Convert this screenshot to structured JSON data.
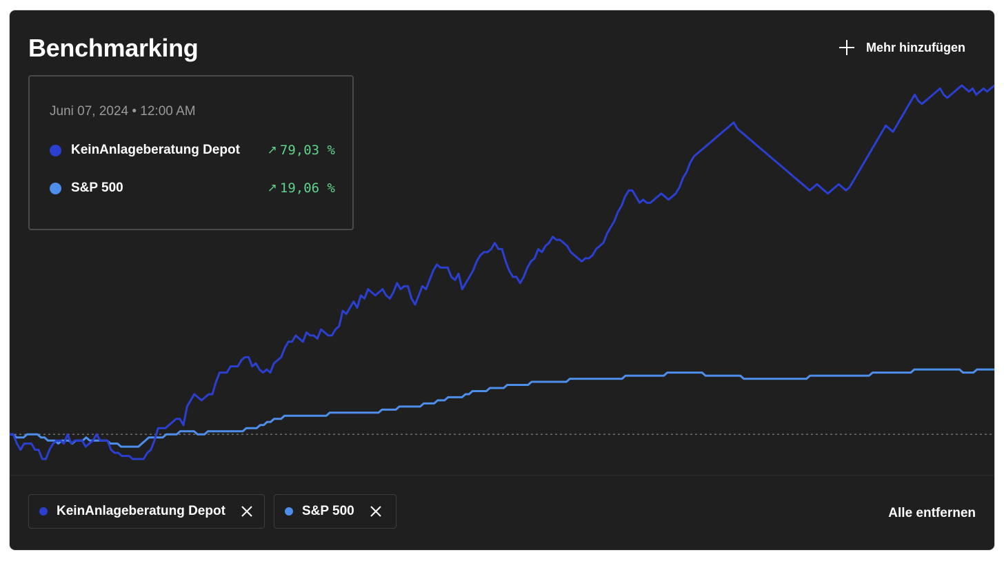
{
  "header": {
    "title": "Benchmarking",
    "add_more_label": "Mehr hinzufügen",
    "add_icon": "plus-icon"
  },
  "tooltip": {
    "date": "Juni 07, 2024 • 12:00 AM",
    "rows": [
      {
        "label": "KeinAnlageberatung Depot",
        "change": "79,03 %",
        "color": "#2b3fd0",
        "icon": "arrow-up-right-icon"
      },
      {
        "label": "S&P 500",
        "change": "19,06 %",
        "color": "#4f8fec",
        "icon": "arrow-up-right-icon"
      }
    ]
  },
  "chips": [
    {
      "label": "KeinAnlageberatung Depot",
      "color": "#2b3fd0",
      "close_icon": "close-icon"
    },
    {
      "label": "S&P 500",
      "color": "#4f8fec",
      "close_icon": "close-icon"
    }
  ],
  "remove_all_label": "Alle entfernen",
  "colors": {
    "background": "#1f1f20",
    "depot": "#2b3fd0",
    "sp500": "#4f8fec",
    "positive": "#5fd48a",
    "baseline": "#8a8a8c"
  },
  "chart_data": {
    "type": "line",
    "baseline": 0,
    "ylim": [
      -10,
      115
    ],
    "grid": false,
    "legend": "bottom",
    "series": [
      {
        "name": "KeinAnlageberatung Depot",
        "color": "#2b3fd0",
        "values": [
          0,
          0,
          -3,
          -5,
          -3,
          -3,
          -3,
          -5,
          -5,
          -8,
          -8,
          -5,
          -3,
          -2,
          -2,
          -3,
          0,
          -3,
          -2,
          -2,
          -2,
          -4,
          -3,
          -2,
          0,
          -2,
          -2,
          -2,
          -5,
          -6,
          -6,
          -7,
          -7,
          -7,
          -8,
          -8,
          -8,
          -8,
          -6,
          -5,
          -2,
          2,
          2,
          2,
          3,
          4,
          5,
          5,
          3,
          9,
          11,
          13,
          12,
          11,
          12,
          13,
          13,
          17,
          20,
          20,
          20,
          22,
          22,
          22,
          24,
          25,
          25,
          22,
          23,
          21,
          20,
          21,
          20,
          23,
          24,
          25,
          28,
          30,
          30,
          32,
          31,
          30,
          33,
          32,
          32,
          31,
          34,
          33,
          32,
          32,
          34,
          35,
          40,
          39,
          41,
          43,
          41,
          45,
          44,
          47,
          46,
          45,
          46,
          47,
          45,
          44,
          46,
          49,
          47,
          48,
          48,
          44,
          42,
          45,
          48,
          47,
          50,
          53,
          55,
          54,
          54,
          54,
          51,
          50,
          52,
          47,
          49,
          51,
          53,
          56,
          58,
          59,
          59,
          60,
          62,
          60,
          60,
          56,
          53,
          51,
          51,
          49,
          51,
          54,
          56,
          57,
          60,
          59,
          61,
          62,
          64,
          63,
          63,
          62,
          61,
          59,
          58,
          57,
          56,
          57,
          57,
          58,
          60,
          61,
          62,
          65,
          67,
          69,
          72,
          74,
          77,
          79,
          79,
          77,
          75,
          76,
          75,
          75,
          76,
          77,
          78,
          77,
          76,
          77,
          78,
          80,
          83,
          85,
          88,
          90,
          91,
          92,
          93,
          94,
          95,
          96,
          97,
          98,
          99,
          100,
          101,
          99,
          98,
          97,
          96,
          95,
          94,
          93,
          92,
          91,
          90,
          89,
          88,
          87,
          86,
          85,
          84,
          83,
          82,
          81,
          80,
          79,
          80,
          81,
          80,
          79,
          78,
          79,
          80,
          81,
          80,
          79,
          80,
          82,
          84,
          86,
          88,
          90,
          92,
          94,
          96,
          98,
          100,
          99,
          98,
          100,
          102,
          104,
          106,
          108,
          110,
          108,
          107,
          108,
          109,
          110,
          111,
          112,
          110,
          109,
          110,
          111,
          112,
          113,
          112,
          111,
          112,
          110,
          111,
          112,
          111,
          112,
          113
        ]
      },
      {
        "name": "S&P 500",
        "color": "#4f8fec",
        "values": [
          0,
          0,
          -1,
          -1,
          -1,
          0,
          0,
          0,
          0,
          -1,
          -1,
          -2,
          -2,
          -2,
          -3,
          -2,
          -2,
          -2,
          -3,
          -2,
          -2,
          -2,
          -1,
          -2,
          -2,
          -2,
          -2,
          -2,
          -2,
          -3,
          -3,
          -3,
          -4,
          -4,
          -4,
          -4,
          -4,
          -4,
          -3,
          -2,
          -1,
          -1,
          -1,
          -1,
          -1,
          0,
          0,
          0,
          0,
          1,
          1,
          1,
          1,
          1,
          0,
          0,
          0,
          1,
          1,
          1,
          1,
          1,
          1,
          1,
          1,
          1,
          1,
          1,
          2,
          2,
          2,
          2,
          3,
          3,
          4,
          4,
          5,
          5,
          5,
          6,
          6,
          6,
          6,
          6,
          6,
          6,
          6,
          6,
          6,
          6,
          6,
          6,
          7,
          7,
          7,
          7,
          7,
          7,
          7,
          7,
          7,
          7,
          7,
          7,
          7,
          7,
          7,
          8,
          8,
          8,
          8,
          8,
          9,
          9,
          9,
          9,
          9,
          9,
          9,
          10,
          10,
          10,
          10,
          11,
          11,
          11,
          12,
          12,
          12,
          12,
          12,
          13,
          13,
          14,
          14,
          14,
          14,
          14,
          15,
          15,
          15,
          15,
          15,
          16,
          16,
          16,
          16,
          16,
          16,
          16,
          17,
          17,
          17,
          17,
          17,
          17,
          17,
          17,
          17,
          17,
          17,
          18,
          18,
          18,
          18,
          18,
          18,
          18,
          18,
          18,
          18,
          18,
          18,
          18,
          18,
          18,
          18,
          19,
          19,
          19,
          19,
          19,
          19,
          19,
          19,
          19,
          19,
          19,
          19,
          20,
          20,
          20,
          20,
          20,
          20,
          20,
          20,
          20,
          20,
          20,
          19,
          19,
          19,
          19,
          19,
          19,
          19,
          19,
          19,
          19,
          19,
          18,
          18,
          18,
          18,
          18,
          18,
          18,
          18,
          18,
          18,
          18,
          18,
          18,
          18,
          18,
          18,
          18,
          18,
          18,
          19,
          19,
          19,
          19,
          19,
          19,
          19,
          19,
          19,
          19,
          19,
          19,
          19,
          19,
          19,
          19,
          19,
          19,
          20,
          20,
          20,
          20,
          20,
          20,
          20,
          20,
          20,
          20,
          20,
          20,
          21,
          21,
          21,
          21,
          21,
          21,
          21,
          21,
          21,
          21,
          21,
          21,
          21,
          21,
          20,
          20,
          20,
          20,
          21,
          21,
          21,
          21,
          21,
          21
        ]
      }
    ]
  }
}
